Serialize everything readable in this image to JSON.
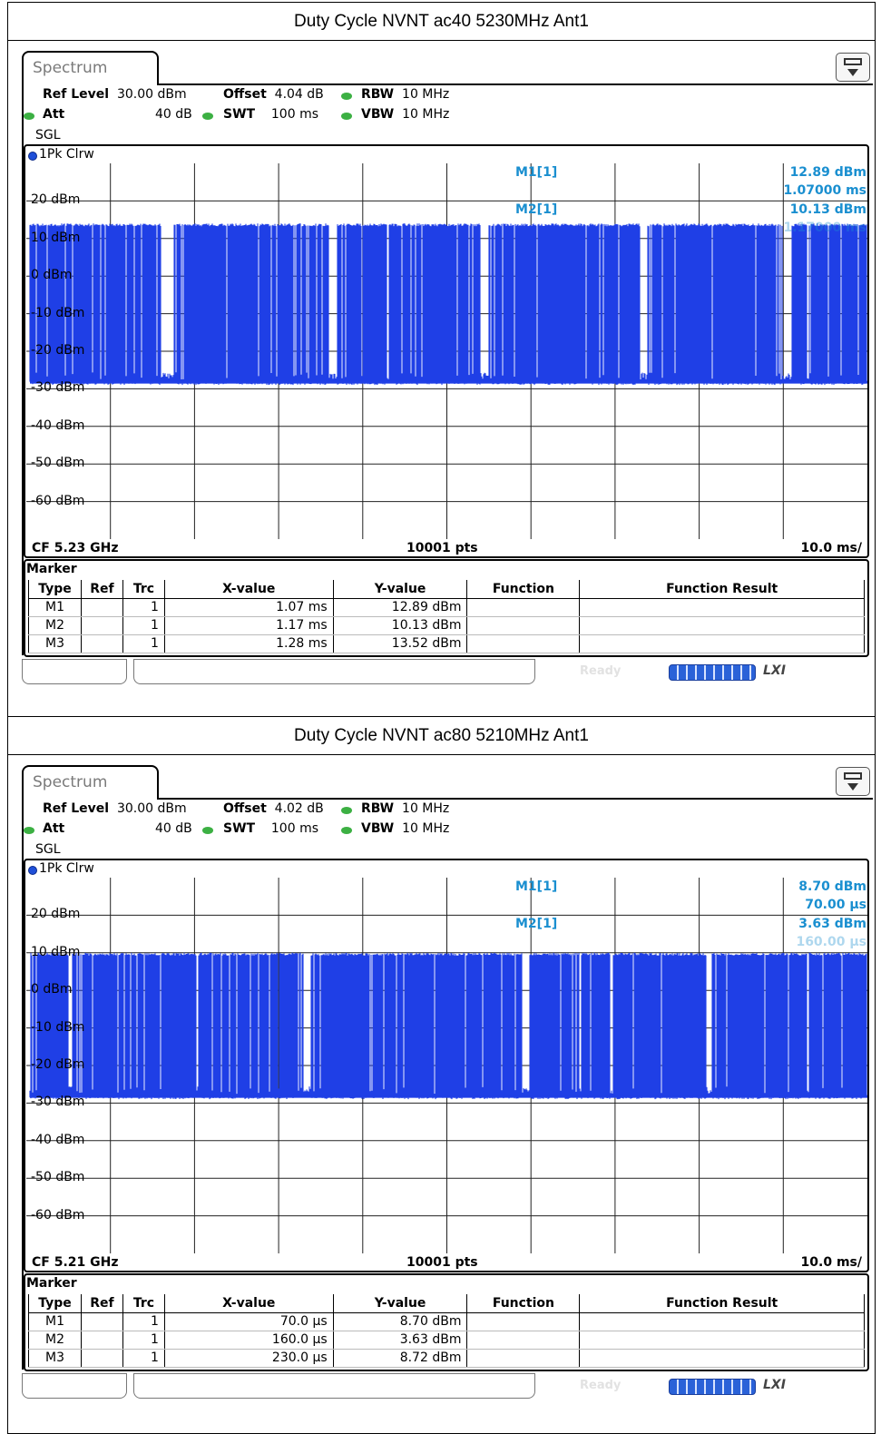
{
  "captures": [
    {
      "title": "Duty Cycle NVNT ac40 5230MHz Ant1",
      "tab": "Spectrum",
      "settings": {
        "ref_level_label": "Ref Level",
        "ref_level": "30.00 dBm",
        "offset_label": "Offset",
        "offset": "4.04 dB",
        "rbw_label": "RBW",
        "rbw": "10 MHz",
        "att_label": "Att",
        "att": "40 dB",
        "swt_label": "SWT",
        "swt": "100 ms",
        "vbw_label": "VBW",
        "vbw": "10 MHz",
        "mode": "SGL"
      },
      "trace_label": "1Pk Clrw",
      "marker_readouts": {
        "m1_label": "M1[1]",
        "m1_level": "12.89 dBm",
        "m1_time": "1.07000 ms",
        "m2_label": "M2[1]",
        "m2_level": "10.13 dBm",
        "m2_time": "1.17000 ms"
      },
      "footer": {
        "cf": "CF 5.23 GHz",
        "pts": "10001 pts",
        "span": "10.0 ms/"
      },
      "marker_table": {
        "title": "Marker",
        "headers": [
          "Type",
          "Ref",
          "Trc",
          "X-value",
          "Y-value",
          "Function",
          "Function Result"
        ],
        "rows": [
          {
            "type": "M1",
            "ref": "",
            "trc": "1",
            "x": "1.07 ms",
            "y": "12.89 dBm",
            "func": "",
            "result": ""
          },
          {
            "type": "M2",
            "ref": "",
            "trc": "1",
            "x": "1.17 ms",
            "y": "10.13 dBm",
            "func": "",
            "result": ""
          },
          {
            "type": "M3",
            "ref": "",
            "trc": "1",
            "x": "1.28 ms",
            "y": "13.52 dBm",
            "func": "",
            "result": ""
          }
        ]
      },
      "status": {
        "ready": "Ready",
        "lxi": "LXI"
      }
    },
    {
      "title": "Duty Cycle NVNT ac80 5210MHz Ant1",
      "tab": "Spectrum",
      "settings": {
        "ref_level_label": "Ref Level",
        "ref_level": "30.00 dBm",
        "offset_label": "Offset",
        "offset": "4.02 dB",
        "rbw_label": "RBW",
        "rbw": "10 MHz",
        "att_label": "Att",
        "att": "40 dB",
        "swt_label": "SWT",
        "swt": "100 ms",
        "vbw_label": "VBW",
        "vbw": "10 MHz",
        "mode": "SGL"
      },
      "trace_label": "1Pk Clrw",
      "marker_readouts": {
        "m1_label": "M1[1]",
        "m1_level": "8.70 dBm",
        "m1_time": "70.00 µs",
        "m2_label": "M2[1]",
        "m2_level": "3.63 dBm",
        "m2_time": "160.00 µs"
      },
      "footer": {
        "cf": "CF 5.21 GHz",
        "pts": "10001 pts",
        "span": "10.0 ms/"
      },
      "marker_table": {
        "title": "Marker",
        "headers": [
          "Type",
          "Ref",
          "Trc",
          "X-value",
          "Y-value",
          "Function",
          "Function Result"
        ],
        "rows": [
          {
            "type": "M1",
            "ref": "",
            "trc": "1",
            "x": "70.0 µs",
            "y": "8.70 dBm",
            "func": "",
            "result": ""
          },
          {
            "type": "M2",
            "ref": "",
            "trc": "1",
            "x": "160.0 µs",
            "y": "3.63 dBm",
            "func": "",
            "result": ""
          },
          {
            "type": "M3",
            "ref": "",
            "trc": "1",
            "x": "230.0 µs",
            "y": "8.72 dBm",
            "func": "",
            "result": ""
          }
        ]
      },
      "status": {
        "ready": "Ready",
        "lxi": "LXI"
      }
    }
  ],
  "chart_data": [
    {
      "type": "line",
      "title": "",
      "xlabel": "",
      "ylabel": "",
      "ylim": [
        -70,
        30
      ],
      "yticks": [
        "20 dBm",
        "10 dBm",
        "0 dBm",
        "-10 dBm",
        "-20 dBm",
        "-30 dBm",
        "-40 dBm",
        "-50 dBm",
        "-60 dBm"
      ],
      "x_divisions": 10,
      "series": [
        {
          "high_level_dbm": 14,
          "noise_floor_dbm": -28
        }
      ],
      "gaps_ms": [
        [
          1.6,
          1.75
        ],
        [
          3.6,
          3.7
        ],
        [
          5.4,
          5.5
        ],
        [
          7.3,
          7.38
        ],
        [
          9.0,
          9.1
        ]
      ],
      "color": "#1f3fe6"
    },
    {
      "type": "line",
      "title": "",
      "xlabel": "",
      "ylabel": "",
      "ylim": [
        -70,
        30
      ],
      "yticks": [
        "20 dBm",
        "10 dBm",
        "0 dBm",
        "-10 dBm",
        "-20 dBm",
        "-30 dBm",
        "-40 dBm",
        "-50 dBm",
        "-60 dBm"
      ],
      "x_divisions": 10,
      "series": [
        {
          "high_level_dbm": 10,
          "noise_floor_dbm": -28
        }
      ],
      "gaps_ms": [
        [
          0.5,
          0.55
        ],
        [
          3.3,
          3.38
        ],
        [
          5.9,
          5.98
        ],
        [
          8.1,
          8.15
        ]
      ],
      "color": "#1f3fe6"
    }
  ]
}
